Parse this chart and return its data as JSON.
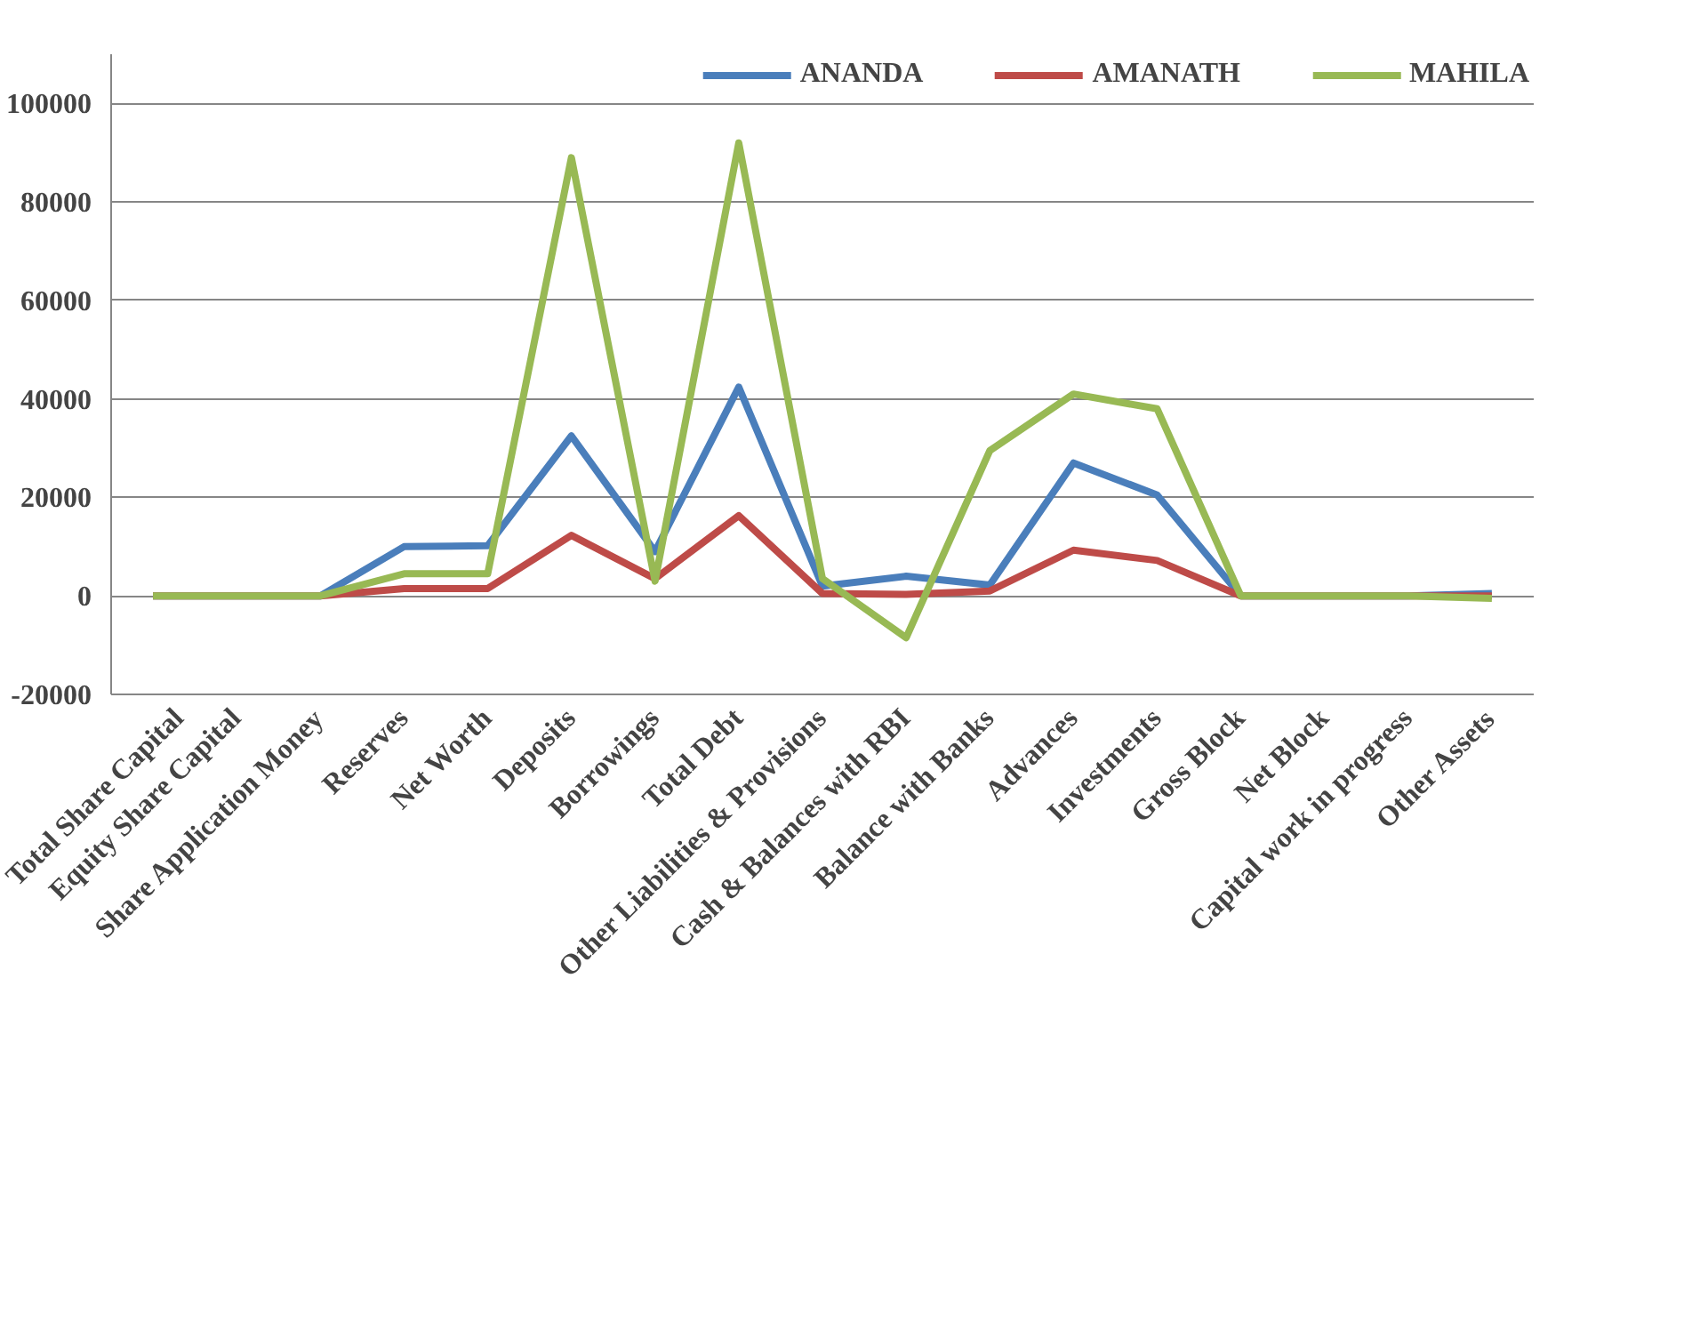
{
  "chart_data": {
    "type": "line",
    "categories": [
      "Total Share Capital",
      "Equity Share Capital",
      "Share Application Money",
      "Reserves",
      "Net Worth",
      "Deposits",
      "Borrowings",
      "Total Debt",
      "Other Liabilities & Provisions",
      "Cash & Balances with RBI",
      "Balance with Banks",
      "Advances",
      "Investments",
      "Gross Block",
      "Net Block",
      "Capital work in progress",
      "Other Assets"
    ],
    "series": [
      {
        "name": "ANANDA",
        "color": "#4a7ebb",
        "values": [
          0,
          0,
          0,
          10000,
          10200,
          32500,
          9000,
          42400,
          2000,
          4000,
          2200,
          27000,
          20500,
          0,
          0,
          0,
          500
        ]
      },
      {
        "name": "AMANATH",
        "color": "#be4b48",
        "values": [
          0,
          0,
          0,
          1500,
          1500,
          12300,
          3500,
          16300,
          500,
          300,
          1000,
          9300,
          7200,
          0,
          0,
          0,
          0
        ]
      },
      {
        "name": "MAHILA",
        "color": "#98b954",
        "values": [
          0,
          0,
          0,
          4500,
          4500,
          89000,
          3000,
          92000,
          3500,
          -8500,
          29500,
          41000,
          38000,
          0,
          0,
          0,
          -500
        ]
      }
    ],
    "ylim": [
      -20000,
      110000
    ],
    "yticks": [
      -20000,
      0,
      20000,
      40000,
      60000,
      80000,
      100000
    ],
    "grid": "y",
    "legend": "top right",
    "marker": "none",
    "line_style": "solid"
  }
}
